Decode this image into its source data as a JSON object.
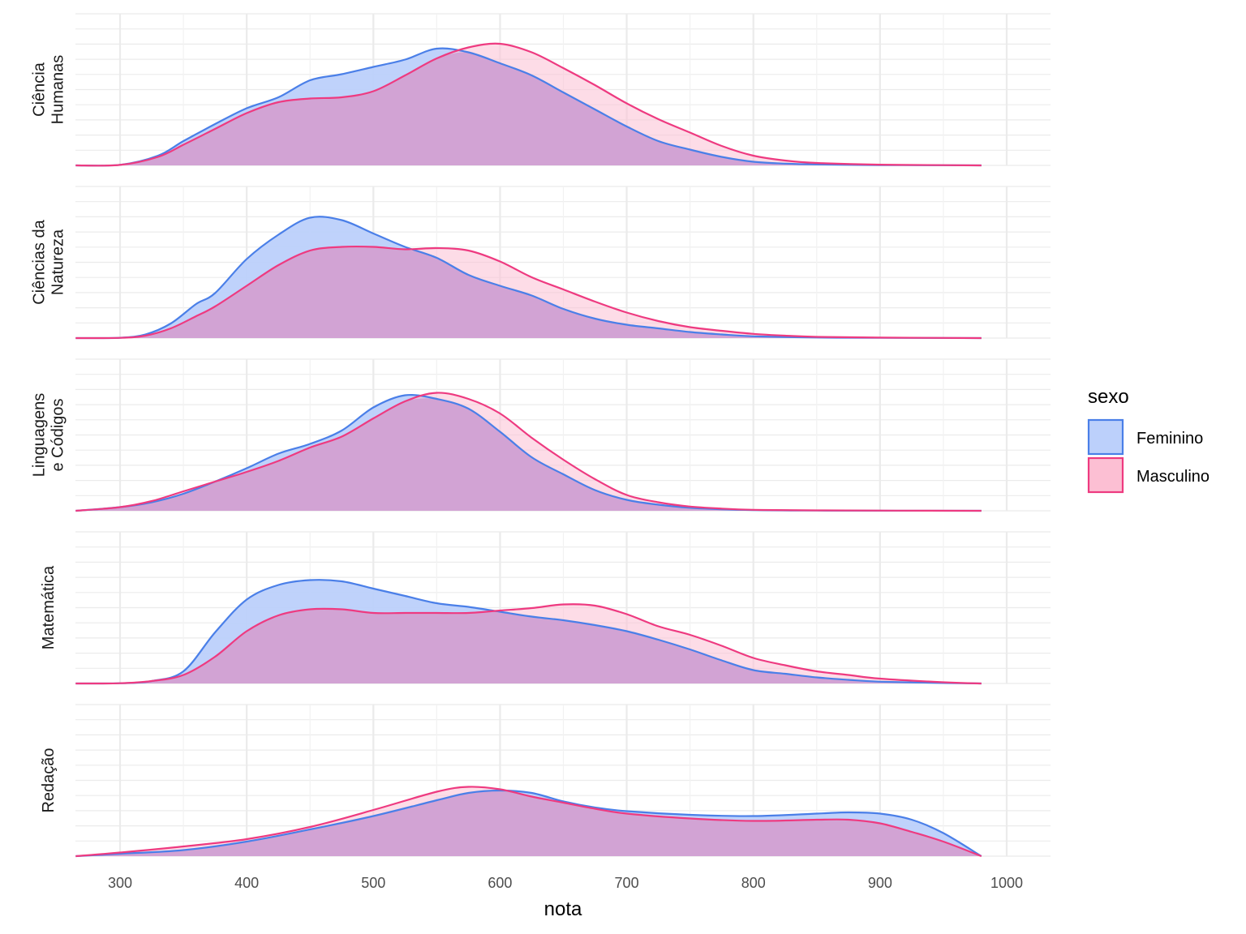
{
  "chart_data": {
    "type": "area",
    "subtype": "ridgeline-density",
    "xlabel": "nota",
    "xlim": [
      265,
      1035
    ],
    "x_ticks": [
      300,
      400,
      500,
      600,
      700,
      800,
      900,
      1000
    ],
    "x_tick_labels": [
      "300",
      "400",
      "500",
      "600",
      "700",
      "800",
      "900",
      "1000"
    ],
    "grid": true,
    "legend": {
      "title": "sexo",
      "position": "right",
      "entries": [
        {
          "key": "feminino",
          "label": "Feminino",
          "line_color": "#4a7fe8",
          "fill_color": "#bcd0fb"
        },
        {
          "key": "masculino",
          "label": "Masculino",
          "line_color": "#ee3a80",
          "fill_color": "#fcbfd3"
        }
      ]
    },
    "overlap_fill_color": "#d2a3d4",
    "panels": [
      {
        "label_lines": [
          "Ciência",
          "Humanas"
        ],
        "density_max": 1.0,
        "series": {
          "feminino": [
            [
              265,
              0
            ],
            [
              300,
              0.005
            ],
            [
              330,
              0.08
            ],
            [
              350,
              0.2
            ],
            [
              375,
              0.34
            ],
            [
              400,
              0.47
            ],
            [
              425,
              0.56
            ],
            [
              450,
              0.7
            ],
            [
              475,
              0.75
            ],
            [
              500,
              0.81
            ],
            [
              525,
              0.87
            ],
            [
              550,
              0.96
            ],
            [
              575,
              0.93
            ],
            [
              600,
              0.84
            ],
            [
              625,
              0.74
            ],
            [
              650,
              0.6
            ],
            [
              675,
              0.46
            ],
            [
              700,
              0.32
            ],
            [
              725,
              0.2
            ],
            [
              750,
              0.13
            ],
            [
              775,
              0.07
            ],
            [
              800,
              0.03
            ],
            [
              825,
              0.015
            ],
            [
              850,
              0.008
            ],
            [
              900,
              0.003
            ],
            [
              950,
              0.001
            ],
            [
              980,
              0
            ]
          ],
          "masculino": [
            [
              265,
              0
            ],
            [
              300,
              0.004
            ],
            [
              330,
              0.07
            ],
            [
              350,
              0.17
            ],
            [
              375,
              0.3
            ],
            [
              400,
              0.43
            ],
            [
              425,
              0.52
            ],
            [
              450,
              0.55
            ],
            [
              475,
              0.56
            ],
            [
              500,
              0.61
            ],
            [
              525,
              0.74
            ],
            [
              550,
              0.88
            ],
            [
              575,
              0.97
            ],
            [
              600,
              1.0
            ],
            [
              625,
              0.93
            ],
            [
              650,
              0.8
            ],
            [
              675,
              0.66
            ],
            [
              700,
              0.51
            ],
            [
              725,
              0.38
            ],
            [
              750,
              0.27
            ],
            [
              775,
              0.16
            ],
            [
              800,
              0.08
            ],
            [
              825,
              0.04
            ],
            [
              850,
              0.02
            ],
            [
              900,
              0.006
            ],
            [
              950,
              0.002
            ],
            [
              980,
              0
            ]
          ]
        }
      },
      {
        "label_lines": [
          "Ciências da",
          "Natureza"
        ],
        "density_max": 1.0,
        "series": {
          "feminino": [
            [
              265,
              0
            ],
            [
              300,
              0.003
            ],
            [
              320,
              0.03
            ],
            [
              340,
              0.12
            ],
            [
              360,
              0.28
            ],
            [
              375,
              0.37
            ],
            [
              400,
              0.65
            ],
            [
              425,
              0.85
            ],
            [
              450,
              0.99
            ],
            [
              475,
              0.97
            ],
            [
              500,
              0.86
            ],
            [
              525,
              0.75
            ],
            [
              550,
              0.66
            ],
            [
              575,
              0.52
            ],
            [
              600,
              0.43
            ],
            [
              625,
              0.35
            ],
            [
              650,
              0.24
            ],
            [
              675,
              0.16
            ],
            [
              700,
              0.11
            ],
            [
              725,
              0.08
            ],
            [
              750,
              0.05
            ],
            [
              775,
              0.03
            ],
            [
              800,
              0.015
            ],
            [
              850,
              0.005
            ],
            [
              900,
              0.002
            ],
            [
              980,
              0
            ]
          ],
          "masculino": [
            [
              265,
              0
            ],
            [
              300,
              0.002
            ],
            [
              320,
              0.02
            ],
            [
              340,
              0.08
            ],
            [
              360,
              0.18
            ],
            [
              375,
              0.26
            ],
            [
              400,
              0.43
            ],
            [
              425,
              0.6
            ],
            [
              450,
              0.72
            ],
            [
              475,
              0.75
            ],
            [
              500,
              0.75
            ],
            [
              525,
              0.73
            ],
            [
              550,
              0.74
            ],
            [
              575,
              0.72
            ],
            [
              600,
              0.63
            ],
            [
              625,
              0.5
            ],
            [
              650,
              0.4
            ],
            [
              675,
              0.3
            ],
            [
              700,
              0.21
            ],
            [
              725,
              0.14
            ],
            [
              750,
              0.09
            ],
            [
              775,
              0.06
            ],
            [
              800,
              0.035
            ],
            [
              825,
              0.02
            ],
            [
              850,
              0.01
            ],
            [
              900,
              0.004
            ],
            [
              980,
              0
            ]
          ]
        }
      },
      {
        "label_lines": [
          "Linguagens",
          "e Códigos"
        ],
        "density_max": 1.0,
        "series": {
          "feminino": [
            [
              265,
              0
            ],
            [
              300,
              0.03
            ],
            [
              325,
              0.07
            ],
            [
              350,
              0.14
            ],
            [
              375,
              0.24
            ],
            [
              400,
              0.35
            ],
            [
              425,
              0.47
            ],
            [
              450,
              0.55
            ],
            [
              475,
              0.66
            ],
            [
              500,
              0.85
            ],
            [
              525,
              0.95
            ],
            [
              550,
              0.92
            ],
            [
              575,
              0.84
            ],
            [
              600,
              0.65
            ],
            [
              625,
              0.44
            ],
            [
              650,
              0.3
            ],
            [
              675,
              0.17
            ],
            [
              700,
              0.09
            ],
            [
              725,
              0.05
            ],
            [
              750,
              0.025
            ],
            [
              775,
              0.012
            ],
            [
              800,
              0.006
            ],
            [
              850,
              0.002
            ],
            [
              980,
              0
            ]
          ],
          "masculino": [
            [
              265,
              0
            ],
            [
              300,
              0.03
            ],
            [
              325,
              0.08
            ],
            [
              350,
              0.16
            ],
            [
              375,
              0.24
            ],
            [
              400,
              0.32
            ],
            [
              425,
              0.41
            ],
            [
              450,
              0.52
            ],
            [
              475,
              0.61
            ],
            [
              500,
              0.76
            ],
            [
              525,
              0.9
            ],
            [
              550,
              0.97
            ],
            [
              575,
              0.92
            ],
            [
              600,
              0.8
            ],
            [
              625,
              0.6
            ],
            [
              650,
              0.42
            ],
            [
              675,
              0.26
            ],
            [
              700,
              0.13
            ],
            [
              725,
              0.07
            ],
            [
              750,
              0.035
            ],
            [
              775,
              0.018
            ],
            [
              800,
              0.008
            ],
            [
              850,
              0.003
            ],
            [
              980,
              0
            ]
          ]
        }
      },
      {
        "label_lines": [
          "Matemática"
        ],
        "density_max": 1.0,
        "series": {
          "feminino": [
            [
              265,
              0
            ],
            [
              300,
              0.002
            ],
            [
              325,
              0.02
            ],
            [
              350,
              0.1
            ],
            [
              375,
              0.42
            ],
            [
              400,
              0.69
            ],
            [
              425,
              0.81
            ],
            [
              450,
              0.85
            ],
            [
              475,
              0.84
            ],
            [
              500,
              0.78
            ],
            [
              525,
              0.72
            ],
            [
              550,
              0.66
            ],
            [
              575,
              0.63
            ],
            [
              600,
              0.59
            ],
            [
              625,
              0.55
            ],
            [
              650,
              0.52
            ],
            [
              675,
              0.48
            ],
            [
              700,
              0.43
            ],
            [
              725,
              0.36
            ],
            [
              750,
              0.28
            ],
            [
              775,
              0.19
            ],
            [
              800,
              0.11
            ],
            [
              825,
              0.08
            ],
            [
              850,
              0.05
            ],
            [
              875,
              0.03
            ],
            [
              900,
              0.015
            ],
            [
              950,
              0.004
            ],
            [
              980,
              0
            ]
          ],
          "masculino": [
            [
              265,
              0
            ],
            [
              300,
              0.002
            ],
            [
              325,
              0.02
            ],
            [
              350,
              0.07
            ],
            [
              375,
              0.22
            ],
            [
              400,
              0.43
            ],
            [
              425,
              0.56
            ],
            [
              450,
              0.61
            ],
            [
              475,
              0.61
            ],
            [
              500,
              0.58
            ],
            [
              525,
              0.58
            ],
            [
              550,
              0.58
            ],
            [
              575,
              0.58
            ],
            [
              600,
              0.6
            ],
            [
              625,
              0.62
            ],
            [
              650,
              0.65
            ],
            [
              675,
              0.64
            ],
            [
              700,
              0.57
            ],
            [
              725,
              0.47
            ],
            [
              750,
              0.4
            ],
            [
              775,
              0.31
            ],
            [
              800,
              0.21
            ],
            [
              825,
              0.15
            ],
            [
              850,
              0.1
            ],
            [
              875,
              0.07
            ],
            [
              900,
              0.04
            ],
            [
              950,
              0.01
            ],
            [
              980,
              0
            ]
          ]
        }
      },
      {
        "label_lines": [
          "Redação"
        ],
        "density_max": 1.0,
        "series": {
          "feminino": [
            [
              265,
              0
            ],
            [
              300,
              0.02
            ],
            [
              350,
              0.05
            ],
            [
              400,
              0.12
            ],
            [
              450,
              0.22
            ],
            [
              500,
              0.33
            ],
            [
              550,
              0.46
            ],
            [
              575,
              0.52
            ],
            [
              600,
              0.54
            ],
            [
              625,
              0.52
            ],
            [
              650,
              0.45
            ],
            [
              675,
              0.4
            ],
            [
              700,
              0.37
            ],
            [
              750,
              0.34
            ],
            [
              800,
              0.33
            ],
            [
              850,
              0.35
            ],
            [
              875,
              0.36
            ],
            [
              900,
              0.35
            ],
            [
              925,
              0.3
            ],
            [
              950,
              0.19
            ],
            [
              980,
              0
            ]
          ],
          "masculino": [
            [
              265,
              0
            ],
            [
              300,
              0.03
            ],
            [
              350,
              0.08
            ],
            [
              400,
              0.14
            ],
            [
              450,
              0.24
            ],
            [
              500,
              0.38
            ],
            [
              550,
              0.53
            ],
            [
              575,
              0.57
            ],
            [
              600,
              0.55
            ],
            [
              625,
              0.49
            ],
            [
              650,
              0.44
            ],
            [
              675,
              0.39
            ],
            [
              700,
              0.35
            ],
            [
              750,
              0.31
            ],
            [
              800,
              0.29
            ],
            [
              850,
              0.3
            ],
            [
              875,
              0.3
            ],
            [
              900,
              0.27
            ],
            [
              925,
              0.2
            ],
            [
              950,
              0.12
            ],
            [
              980,
              0
            ]
          ]
        }
      }
    ]
  }
}
